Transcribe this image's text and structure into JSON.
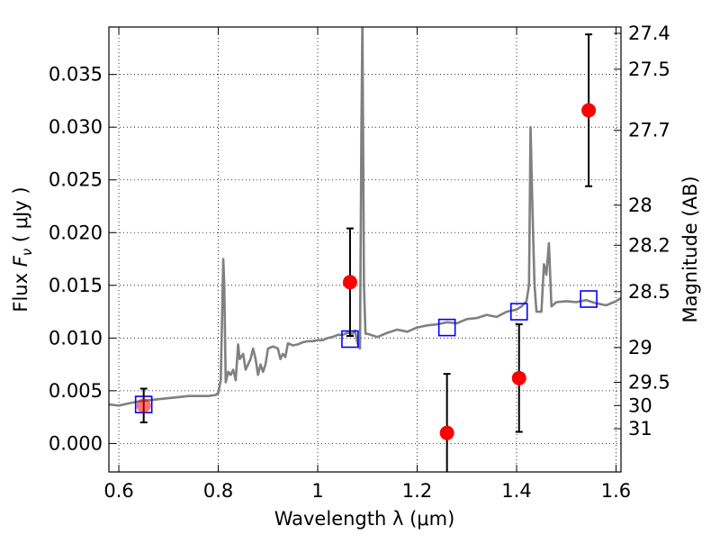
{
  "chart_data": {
    "type": "line",
    "xlabel": "Wavelength  λ (μm)",
    "ylabel": "Flux  F_ν  ( μJy )",
    "ylabel_parts": [
      "Flux  ",
      "F",
      "ν",
      "  ( μJy )"
    ],
    "y2label": "Magnitude (AB)",
    "xlim": [
      0.58,
      1.61
    ],
    "ylim": [
      -0.0027,
      0.0395
    ],
    "grid": true,
    "legend": "none",
    "x_ticks": [
      0.6,
      0.8,
      1.0,
      1.2,
      1.4,
      1.6
    ],
    "x_tick_labels": [
      "0.6",
      "0.8",
      "1",
      "1.2",
      "1.4",
      "1.6"
    ],
    "y_ticks": [
      0.0,
      0.005,
      0.01,
      0.015,
      0.02,
      0.025,
      0.03,
      0.035
    ],
    "y_tick_labels": [
      "0.000",
      "0.005",
      "0.010",
      "0.015",
      "0.020",
      "0.025",
      "0.030",
      "0.035"
    ],
    "mag_ticks": [
      {
        "flux": 0.0389,
        "label": "27.4"
      },
      {
        "flux": 0.0355,
        "label": "27.5"
      },
      {
        "flux": 0.0297,
        "label": "27.7"
      },
      {
        "flux": 0.0226,
        "label": "28"
      },
      {
        "flux": 0.0188,
        "label": "28.2"
      },
      {
        "flux": 0.0144,
        "label": "28.5"
      },
      {
        "flux": 0.0091,
        "label": "29"
      },
      {
        "flux": 0.0058,
        "label": "29.5"
      },
      {
        "flux": 0.0036,
        "label": "30"
      },
      {
        "flux": 0.0014,
        "label": "31"
      }
    ],
    "series": [
      {
        "kind": "spectrum",
        "color": "#808080",
        "x": [
          0.58,
          0.6,
          0.62,
          0.64,
          0.66,
          0.68,
          0.7,
          0.72,
          0.74,
          0.76,
          0.78,
          0.795,
          0.8,
          0.805,
          0.81,
          0.812,
          0.815,
          0.82,
          0.825,
          0.83,
          0.835,
          0.84,
          0.843,
          0.846,
          0.85,
          0.855,
          0.86,
          0.865,
          0.87,
          0.875,
          0.88,
          0.885,
          0.89,
          0.895,
          0.9,
          0.91,
          0.92,
          0.925,
          0.93,
          0.935,
          0.94,
          0.95,
          0.96,
          0.97,
          0.98,
          0.99,
          1.0,
          1.01,
          1.02,
          1.03,
          1.04,
          1.05,
          1.06,
          1.07,
          1.075,
          1.08,
          1.085,
          1.088,
          1.09,
          1.093,
          1.096,
          1.1,
          1.12,
          1.14,
          1.16,
          1.18,
          1.2,
          1.22,
          1.24,
          1.26,
          1.28,
          1.3,
          1.32,
          1.34,
          1.36,
          1.38,
          1.4,
          1.41,
          1.42,
          1.425,
          1.428,
          1.432,
          1.436,
          1.44,
          1.45,
          1.455,
          1.46,
          1.465,
          1.47,
          1.48,
          1.5,
          1.52,
          1.54,
          1.56,
          1.58,
          1.6,
          1.61
        ],
        "y": [
          0.0037,
          0.0036,
          0.0038,
          0.004,
          0.0041,
          0.0042,
          0.0043,
          0.0044,
          0.0045,
          0.0045,
          0.0045,
          0.0046,
          0.0048,
          0.006,
          0.0175,
          0.015,
          0.0058,
          0.0068,
          0.0065,
          0.007,
          0.006,
          0.0094,
          0.008,
          0.0082,
          0.0085,
          0.007,
          0.0075,
          0.008,
          0.009,
          0.008,
          0.0065,
          0.0075,
          0.0068,
          0.0075,
          0.009,
          0.0092,
          0.009,
          0.008,
          0.0085,
          0.0082,
          0.0095,
          0.0093,
          0.0094,
          0.0096,
          0.0097,
          0.0097,
          0.0098,
          0.0098,
          0.01,
          0.0101,
          0.0103,
          0.0103,
          0.0105,
          0.0104,
          0.0107,
          0.0095,
          0.009,
          0.03,
          0.04,
          0.015,
          0.0104,
          0.0104,
          0.0101,
          0.0105,
          0.0108,
          0.0106,
          0.011,
          0.0112,
          0.0113,
          0.0115,
          0.0114,
          0.0118,
          0.0119,
          0.0122,
          0.012,
          0.0125,
          0.0127,
          0.013,
          0.0135,
          0.015,
          0.03,
          0.022,
          0.015,
          0.0125,
          0.0125,
          0.017,
          0.016,
          0.019,
          0.013,
          0.0134,
          0.0135,
          0.0134,
          0.0136,
          0.0133,
          0.0131,
          0.0135,
          0.0138
        ]
      },
      {
        "kind": "points",
        "marker": "filled-circle",
        "color": "#ff0000",
        "x": [
          0.65,
          1.065,
          1.26,
          1.405,
          1.545
        ],
        "y": [
          0.0036,
          0.0153,
          0.001,
          0.0062,
          0.0316
        ],
        "yerr": [
          0.0016,
          0.0051,
          0.0056,
          0.0051,
          0.0072
        ]
      },
      {
        "kind": "points",
        "marker": "open-square",
        "color": "#0000ff",
        "x": [
          0.65,
          1.065,
          1.26,
          1.405,
          1.545
        ],
        "y": [
          0.0037,
          0.0099,
          0.011,
          0.0125,
          0.0137
        ]
      }
    ]
  }
}
